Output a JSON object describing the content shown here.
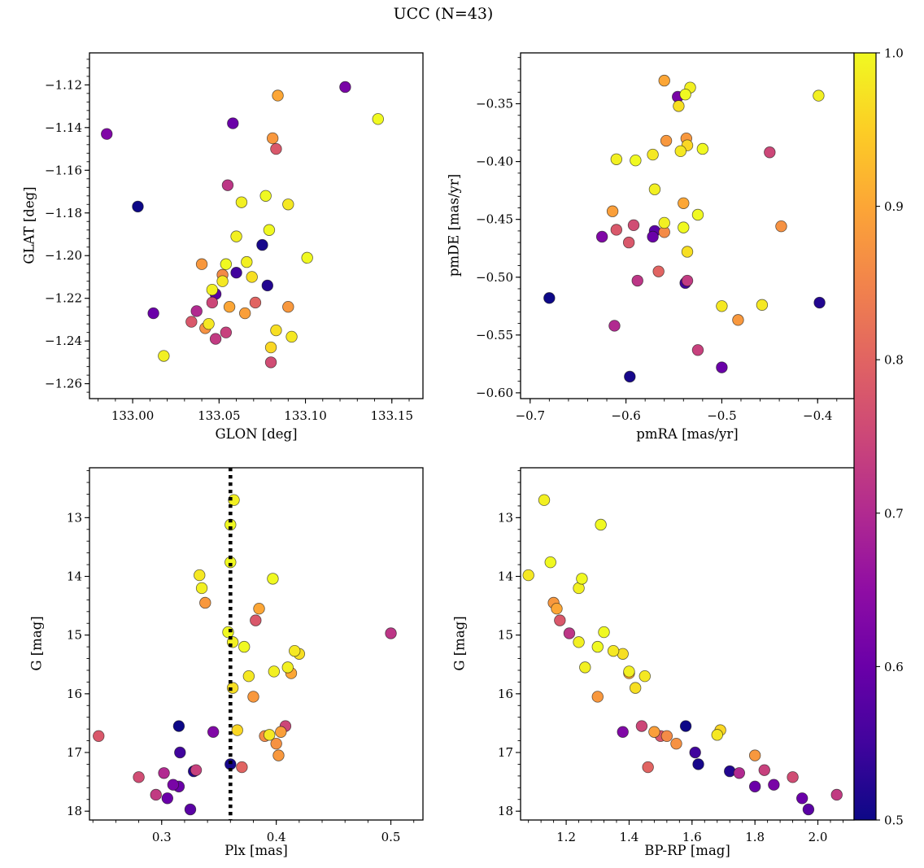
{
  "title": "UCC (N=43)",
  "colorbar": {
    "vmin": 0.5,
    "vmax": 1.0,
    "ticks": [
      {
        "v": 1.0,
        "l": "1.0"
      },
      {
        "v": 0.9,
        "l": "0.9"
      },
      {
        "v": 0.8,
        "l": "0.8"
      },
      {
        "v": 0.7,
        "l": "0.7"
      },
      {
        "v": 0.6,
        "l": "0.6"
      },
      {
        "v": 0.5,
        "l": "0.5"
      }
    ],
    "colormap_name": "plasma",
    "stops": [
      "#0d0887",
      "#41049d",
      "#6a00a8",
      "#8f0da4",
      "#b12a90",
      "#cc4778",
      "#e16462",
      "#f2844b",
      "#fca636",
      "#fcce25",
      "#f0f921"
    ]
  },
  "chart_data": {
    "type": "scatter",
    "title": "UCC (N=43)",
    "n_stars": 43,
    "color_by": "p (membership probability, 0.5-1.0)",
    "panels": [
      {
        "xlabel": "GLON [deg]",
        "ylabel": "GLAT [deg]",
        "xkey": "glon",
        "ykey": "glat",
        "xlim": [
          132.975,
          133.168
        ],
        "ybottom": -1.267,
        "ytop": -1.105,
        "xminor": 0.01,
        "yminor": 0.004,
        "xticks": [
          {
            "v": 133.0,
            "l": "133.00"
          },
          {
            "v": 133.05,
            "l": "133.05"
          },
          {
            "v": 133.1,
            "l": "133.10"
          },
          {
            "v": 133.15,
            "l": "133.15"
          }
        ],
        "yticks": [
          {
            "v": -1.12,
            "l": "−1.12"
          },
          {
            "v": -1.14,
            "l": "−1.14"
          },
          {
            "v": -1.16,
            "l": "−1.16"
          },
          {
            "v": -1.18,
            "l": "−1.18"
          },
          {
            "v": -1.2,
            "l": "−1.20"
          },
          {
            "v": -1.22,
            "l": "−1.22"
          },
          {
            "v": -1.24,
            "l": "−1.24"
          },
          {
            "v": -1.26,
            "l": "−1.26"
          }
        ]
      },
      {
        "xlabel": "pmRA [mas/yr]",
        "ylabel": "pmDE [mas/yr]",
        "xkey": "pmra",
        "ykey": "pmde",
        "xlim": [
          -0.71,
          -0.362
        ],
        "ybottom": -0.605,
        "ytop": -0.306,
        "xminor": 0.02,
        "yminor": 0.01,
        "xticks": [
          {
            "v": -0.7,
            "l": "−0.7"
          },
          {
            "v": -0.6,
            "l": "−0.6"
          },
          {
            "v": -0.5,
            "l": "−0.5"
          },
          {
            "v": -0.4,
            "l": "−0.4"
          }
        ],
        "yticks": [
          {
            "v": -0.35,
            "l": "−0.35"
          },
          {
            "v": -0.4,
            "l": "−0.40"
          },
          {
            "v": -0.45,
            "l": "−0.45"
          },
          {
            "v": -0.5,
            "l": "−0.50"
          },
          {
            "v": -0.55,
            "l": "−0.55"
          },
          {
            "v": -0.6,
            "l": "−0.60"
          }
        ]
      },
      {
        "xlabel": "Plx [mas]",
        "ylabel": "G [mag]",
        "xkey": "plx",
        "ykey": "g",
        "xlim": [
          0.237,
          0.528
        ],
        "ybottom": 18.15,
        "ytop": 12.15,
        "xminor": 0.02,
        "yminor": 0.2,
        "vline": 0.36,
        "xticks": [
          {
            "v": 0.3,
            "l": "0.3"
          },
          {
            "v": 0.4,
            "l": "0.4"
          },
          {
            "v": 0.5,
            "l": "0.5"
          }
        ],
        "yticks": [
          {
            "v": 13,
            "l": "13"
          },
          {
            "v": 14,
            "l": "14"
          },
          {
            "v": 15,
            "l": "15"
          },
          {
            "v": 16,
            "l": "16"
          },
          {
            "v": 17,
            "l": "17"
          },
          {
            "v": 18,
            "l": "18"
          }
        ]
      },
      {
        "xlabel": "BP-RP [mag]",
        "ylabel": "G [mag]",
        "xkey": "bprp",
        "ykey": "g",
        "xlim": [
          1.055,
          2.115
        ],
        "ybottom": 18.15,
        "ytop": 12.15,
        "xminor": 0.04,
        "yminor": 0.2,
        "xticks": [
          {
            "v": 1.2,
            "l": "1.2"
          },
          {
            "v": 1.4,
            "l": "1.4"
          },
          {
            "v": 1.6,
            "l": "1.6"
          },
          {
            "v": 1.8,
            "l": "1.8"
          },
          {
            "v": 2.0,
            "l": "2.0"
          }
        ],
        "yticks": [
          {
            "v": 13,
            "l": "13"
          },
          {
            "v": 14,
            "l": "14"
          },
          {
            "v": 15,
            "l": "15"
          },
          {
            "v": 16,
            "l": "16"
          },
          {
            "v": 17,
            "l": "17"
          },
          {
            "v": 18,
            "l": "18"
          }
        ]
      }
    ],
    "stars": [
      {
        "glon": 133.142,
        "glat": -1.136,
        "pmra": -0.538,
        "pmde": -0.342,
        "plx": 0.36,
        "g": 13.12,
        "bprp": 1.31,
        "p": 1.0
      },
      {
        "glon": 133.063,
        "glat": -1.175,
        "pmra": -0.533,
        "pmde": -0.336,
        "plx": 0.363,
        "g": 12.7,
        "bprp": 1.13,
        "p": 0.99
      },
      {
        "glon": 133.077,
        "glat": -1.172,
        "pmra": -0.52,
        "pmde": -0.389,
        "plx": 0.36,
        "g": 13.76,
        "bprp": 1.15,
        "p": 1.0
      },
      {
        "glon": 133.09,
        "glat": -1.176,
        "pmra": -0.543,
        "pmde": -0.391,
        "plx": 0.333,
        "g": 13.98,
        "bprp": 1.08,
        "p": 0.98
      },
      {
        "glon": 133.079,
        "glat": -1.188,
        "pmra": -0.59,
        "pmde": -0.399,
        "plx": 0.397,
        "g": 14.04,
        "bprp": 1.25,
        "p": 1.0
      },
      {
        "glon": 133.06,
        "glat": -1.191,
        "pmra": -0.57,
        "pmde": -0.424,
        "plx": 0.335,
        "g": 14.2,
        "bprp": 1.24,
        "p": 0.99
      },
      {
        "glon": 133.054,
        "glat": -1.204,
        "pmra": -0.525,
        "pmde": -0.446,
        "plx": 0.358,
        "g": 14.95,
        "bprp": 1.32,
        "p": 1.0
      },
      {
        "glon": 133.066,
        "glat": -1.203,
        "pmra": -0.56,
        "pmde": -0.453,
        "plx": 0.362,
        "g": 15.12,
        "bprp": 1.24,
        "p": 0.99
      },
      {
        "glon": 133.101,
        "glat": -1.201,
        "pmra": -0.54,
        "pmde": -0.457,
        "plx": 0.372,
        "g": 15.2,
        "bprp": 1.3,
        "p": 1.0
      },
      {
        "glon": 133.052,
        "glat": -1.212,
        "pmra": -0.5,
        "pmde": -0.525,
        "plx": 0.416,
        "g": 15.27,
        "bprp": 1.35,
        "p": 0.98
      },
      {
        "glon": 133.069,
        "glat": -1.21,
        "pmra": -0.536,
        "pmde": -0.478,
        "plx": 0.42,
        "g": 15.32,
        "bprp": 1.38,
        "p": 0.97
      },
      {
        "glon": 133.046,
        "glat": -1.216,
        "pmra": -0.61,
        "pmde": -0.398,
        "plx": 0.41,
        "g": 15.55,
        "bprp": 1.26,
        "p": 0.99
      },
      {
        "glon": 133.044,
        "glat": -1.232,
        "pmra": -0.458,
        "pmde": -0.524,
        "plx": 0.376,
        "g": 15.7,
        "bprp": 1.45,
        "p": 0.98
      },
      {
        "glon": 133.083,
        "glat": -1.235,
        "pmra": -0.545,
        "pmde": -0.352,
        "plx": 0.362,
        "g": 15.9,
        "bprp": 1.42,
        "p": 0.97
      },
      {
        "glon": 133.092,
        "glat": -1.238,
        "pmra": -0.572,
        "pmde": -0.394,
        "plx": 0.394,
        "g": 16.7,
        "bprp": 1.68,
        "p": 0.98
      },
      {
        "glon": 133.018,
        "glat": -1.247,
        "pmra": -0.399,
        "pmde": -0.343,
        "plx": 0.398,
        "g": 15.62,
        "bprp": 1.4,
        "p": 0.99
      },
      {
        "glon": 133.08,
        "glat": -1.243,
        "pmra": -0.536,
        "pmde": -0.386,
        "plx": 0.366,
        "g": 16.62,
        "bprp": 1.69,
        "p": 0.96
      },
      {
        "glon": 133.084,
        "glat": -1.125,
        "pmra": -0.56,
        "pmde": -0.33,
        "plx": 0.385,
        "g": 14.55,
        "bprp": 1.17,
        "p": 0.9
      },
      {
        "glon": 133.081,
        "glat": -1.145,
        "pmra": -0.537,
        "pmde": -0.38,
        "plx": 0.338,
        "g": 14.45,
        "bprp": 1.16,
        "p": 0.88
      },
      {
        "glon": 133.04,
        "glat": -1.204,
        "pmra": -0.558,
        "pmde": -0.382,
        "plx": 0.38,
        "g": 16.05,
        "bprp": 1.3,
        "p": 0.88
      },
      {
        "glon": 133.056,
        "glat": -1.224,
        "pmra": -0.54,
        "pmde": -0.436,
        "plx": 0.413,
        "g": 15.65,
        "bprp": 1.4,
        "p": 0.9
      },
      {
        "glon": 133.065,
        "glat": -1.227,
        "pmra": -0.614,
        "pmde": -0.443,
        "plx": 0.404,
        "g": 16.65,
        "bprp": 1.48,
        "p": 0.89
      },
      {
        "glon": 133.042,
        "glat": -1.234,
        "pmra": -0.438,
        "pmde": -0.456,
        "plx": 0.4,
        "g": 16.85,
        "bprp": 1.55,
        "p": 0.87
      },
      {
        "glon": 133.09,
        "glat": -1.224,
        "pmra": -0.483,
        "pmde": -0.537,
        "plx": 0.402,
        "g": 17.05,
        "bprp": 1.8,
        "p": 0.88
      },
      {
        "glon": 133.052,
        "glat": -1.209,
        "pmra": -0.56,
        "pmde": -0.461,
        "plx": 0.39,
        "g": 16.72,
        "bprp": 1.52,
        "p": 0.86
      },
      {
        "glon": 133.083,
        "glat": -1.15,
        "pmra": -0.61,
        "pmde": -0.459,
        "plx": 0.382,
        "g": 14.75,
        "bprp": 1.18,
        "p": 0.78
      },
      {
        "glon": 133.055,
        "glat": -1.167,
        "pmra": -0.588,
        "pmde": -0.503,
        "plx": 0.5,
        "g": 14.97,
        "bprp": 1.21,
        "p": 0.72
      },
      {
        "glon": 133.037,
        "glat": -1.226,
        "pmra": -0.612,
        "pmde": -0.542,
        "plx": 0.302,
        "g": 17.35,
        "bprp": 1.75,
        "p": 0.7
      },
      {
        "glon": 133.034,
        "glat": -1.231,
        "pmra": -0.597,
        "pmde": -0.47,
        "plx": 0.245,
        "g": 16.72,
        "bprp": 1.5,
        "p": 0.78
      },
      {
        "glon": 133.054,
        "glat": -1.236,
        "pmra": -0.525,
        "pmde": -0.563,
        "plx": 0.33,
        "g": 17.3,
        "bprp": 1.83,
        "p": 0.74
      },
      {
        "glon": 133.08,
        "glat": -1.25,
        "pmra": -0.592,
        "pmde": -0.455,
        "plx": 0.28,
        "g": 17.42,
        "bprp": 1.92,
        "p": 0.76
      },
      {
        "glon": 133.071,
        "glat": -1.222,
        "pmra": -0.566,
        "pmde": -0.495,
        "plx": 0.37,
        "g": 17.25,
        "bprp": 1.46,
        "p": 0.8
      },
      {
        "glon": 133.046,
        "glat": -1.222,
        "pmra": -0.45,
        "pmde": -0.392,
        "plx": 0.408,
        "g": 16.55,
        "bprp": 1.44,
        "p": 0.75
      },
      {
        "glon": 133.048,
        "glat": -1.239,
        "pmra": -0.536,
        "pmde": -0.503,
        "plx": 0.295,
        "g": 17.72,
        "bprp": 2.06,
        "p": 0.73
      },
      {
        "glon": 133.123,
        "glat": -1.121,
        "pmra": -0.546,
        "pmde": -0.344,
        "plx": 0.31,
        "g": 17.55,
        "bprp": 1.86,
        "p": 0.62
      },
      {
        "glon": 133.058,
        "glat": -1.138,
        "pmra": -0.572,
        "pmde": -0.465,
        "plx": 0.305,
        "g": 17.78,
        "bprp": 1.95,
        "p": 0.6
      },
      {
        "glon": 132.985,
        "glat": -1.143,
        "pmra": -0.625,
        "pmde": -0.465,
        "plx": 0.345,
        "g": 16.65,
        "bprp": 1.38,
        "p": 0.63
      },
      {
        "glon": 133.012,
        "glat": -1.227,
        "pmra": -0.5,
        "pmde": -0.578,
        "plx": 0.315,
        "g": 17.58,
        "bprp": 1.8,
        "p": 0.6
      },
      {
        "glon": 133.048,
        "glat": -1.218,
        "pmra": -0.57,
        "pmde": -0.46,
        "plx": 0.325,
        "g": 17.97,
        "bprp": 1.97,
        "p": 0.58
      },
      {
        "glon": 133.003,
        "glat": -1.177,
        "pmra": -0.68,
        "pmde": -0.518,
        "plx": 0.315,
        "g": 16.55,
        "bprp": 1.58,
        "p": 0.5
      },
      {
        "glon": 133.075,
        "glat": -1.195,
        "pmra": -0.596,
        "pmde": -0.586,
        "plx": 0.36,
        "g": 17.2,
        "bprp": 1.62,
        "p": 0.51
      },
      {
        "glon": 133.078,
        "glat": -1.214,
        "pmra": -0.398,
        "pmde": -0.522,
        "plx": 0.328,
        "g": 17.32,
        "bprp": 1.72,
        "p": 0.52
      },
      {
        "glon": 133.06,
        "glat": -1.208,
        "pmra": -0.538,
        "pmde": -0.505,
        "plx": 0.316,
        "g": 17.0,
        "bprp": 1.61,
        "p": 0.55
      }
    ]
  }
}
